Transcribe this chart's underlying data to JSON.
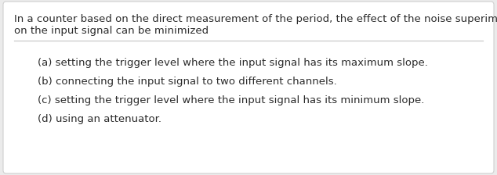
{
  "background_color": "#ebebeb",
  "card_color": "#ffffff",
  "card_edge_color": "#d0d0d0",
  "question_text_line1": "In a counter based on the direct measurement of the period, the effect of the noise superimposed",
  "question_text_line2": "on the input signal can be minimized",
  "divider_color": "#c8c8c8",
  "options": [
    "(a) setting the trigger level where the input signal has its maximum slope.",
    "(b) connecting the input signal to two different channels.",
    "(c) setting the trigger level where the input signal has its minimum slope.",
    "(d) using an attenuator."
  ],
  "text_color": "#2b2b2b",
  "font_size": 9.5,
  "fig_width": 6.34,
  "fig_height": 2.24,
  "dpi": 100
}
